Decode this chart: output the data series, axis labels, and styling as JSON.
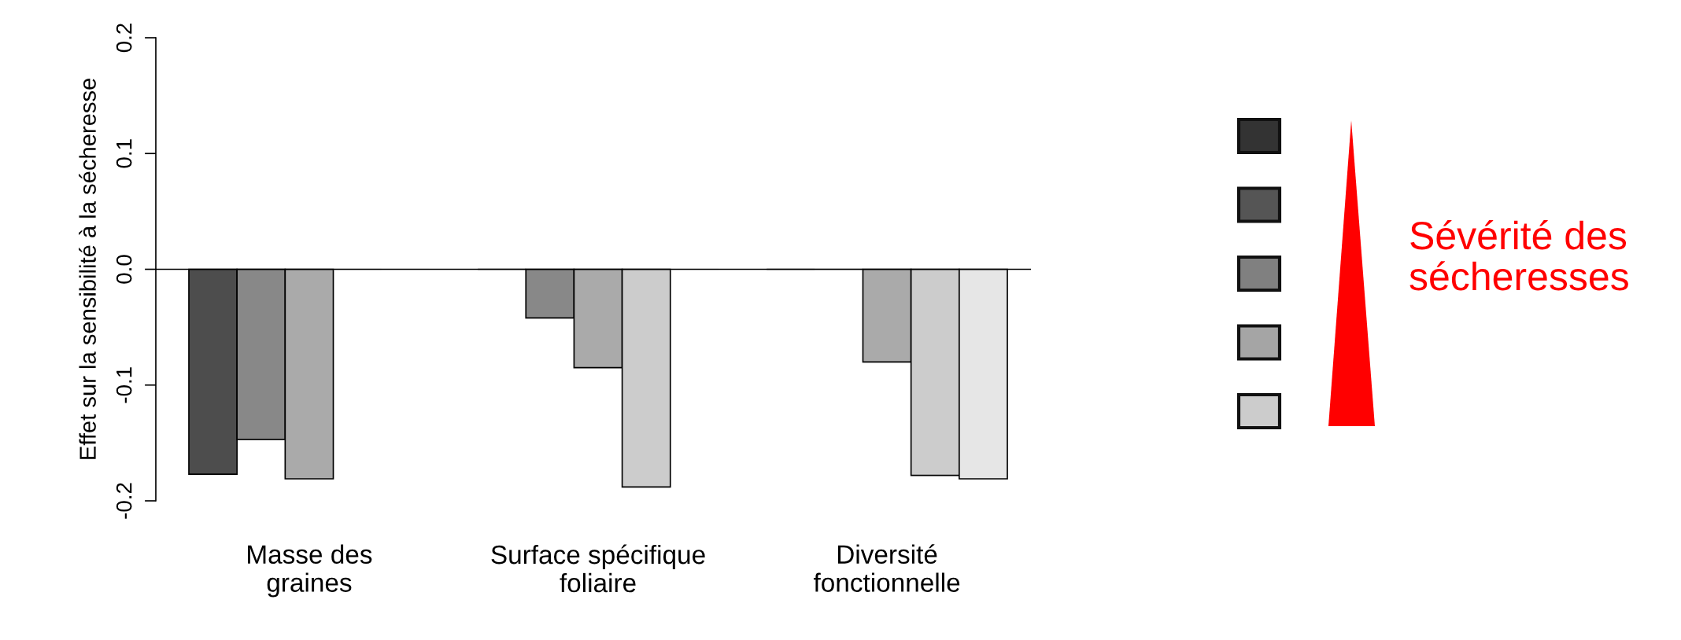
{
  "chart_data": {
    "type": "bar",
    "ylabel": "Effet sur la sensibilité à la sécheresse",
    "categories": [
      "Masse des\ngraines",
      "Surface spécifique\nfoliaire",
      "Diversité\nfonctionnelle"
    ],
    "series": [
      {
        "color": "#4d4d4d",
        "values": [
          -0.177,
          0,
          0
        ]
      },
      {
        "color": "#888888",
        "values": [
          -0.147,
          -0.042,
          0
        ]
      },
      {
        "color": "#aaaaaa",
        "values": [
          -0.181,
          -0.085,
          -0.08
        ]
      },
      {
        "color": "#cccccc",
        "values": [
          0,
          -0.188,
          -0.178
        ]
      },
      {
        "color": "#e6e6e6",
        "values": [
          0,
          0,
          -0.181
        ]
      }
    ],
    "ylim": [
      -0.2,
      0.2
    ],
    "yticks": [
      {
        "value": -0.2,
        "label": "-0.2"
      },
      {
        "value": -0.1,
        "label": "-0.1"
      },
      {
        "value": 0,
        "label": "0.0"
      },
      {
        "value": 0.1,
        "label": "0.1"
      },
      {
        "value": 0.2,
        "label": "0.2"
      }
    ],
    "ref_lines": [
      {
        "axis": "y",
        "value": 0,
        "color": "#000000"
      }
    ],
    "annotations": [
      "Sévérité des\nsécheresses"
    ],
    "grid": false,
    "legend": false
  }
}
